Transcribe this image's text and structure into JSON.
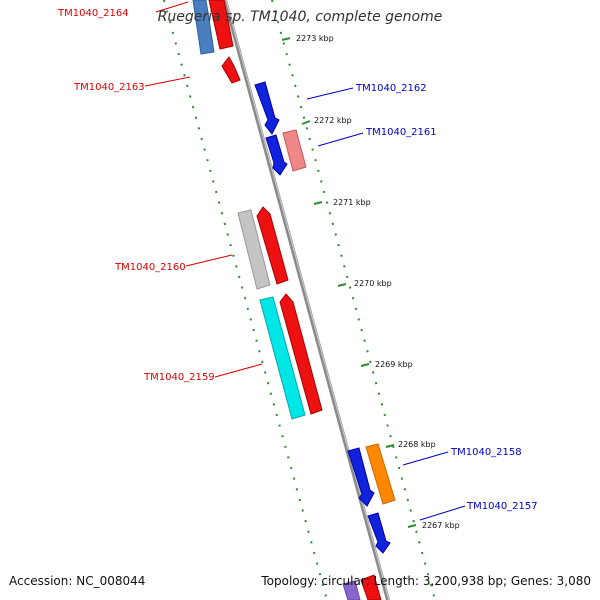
{
  "title": "Ruegeria sp. TM1040, complete genome",
  "footer": {
    "accession": "Accession: NC_008044",
    "summary": "Topology: circular; Length: 3,200,938 bp; Genes: 3,080"
  },
  "colors": {
    "backbone": "#888888",
    "dots": "#2e8b2e",
    "forward_label": "#0000cc",
    "reverse_label": "#dd0000"
  },
  "scale": {
    "unit": "kbp",
    "ticks": [
      {
        "label": "2273 kbp",
        "kbp": 2273
      },
      {
        "label": "2272 kbp",
        "kbp": 2272
      },
      {
        "label": "2271 kbp",
        "kbp": 2271
      },
      {
        "label": "2270 kbp",
        "kbp": 2270
      },
      {
        "label": "2269 kbp",
        "kbp": 2269
      },
      {
        "label": "2268 kbp",
        "kbp": 2268
      },
      {
        "label": "2267 kbp",
        "kbp": 2267
      }
    ]
  },
  "genes": [
    {
      "name": "TM1040_2164",
      "strand": "reverse"
    },
    {
      "name": "TM1040_2163",
      "strand": "reverse"
    },
    {
      "name": "TM1040_2162",
      "strand": "forward"
    },
    {
      "name": "TM1040_2161",
      "strand": "forward"
    },
    {
      "name": "TM1040_2160",
      "strand": "reverse"
    },
    {
      "name": "TM1040_2159",
      "strand": "reverse"
    },
    {
      "name": "TM1040_2158",
      "strand": "forward"
    },
    {
      "name": "TM1040_2157",
      "strand": "forward"
    }
  ]
}
